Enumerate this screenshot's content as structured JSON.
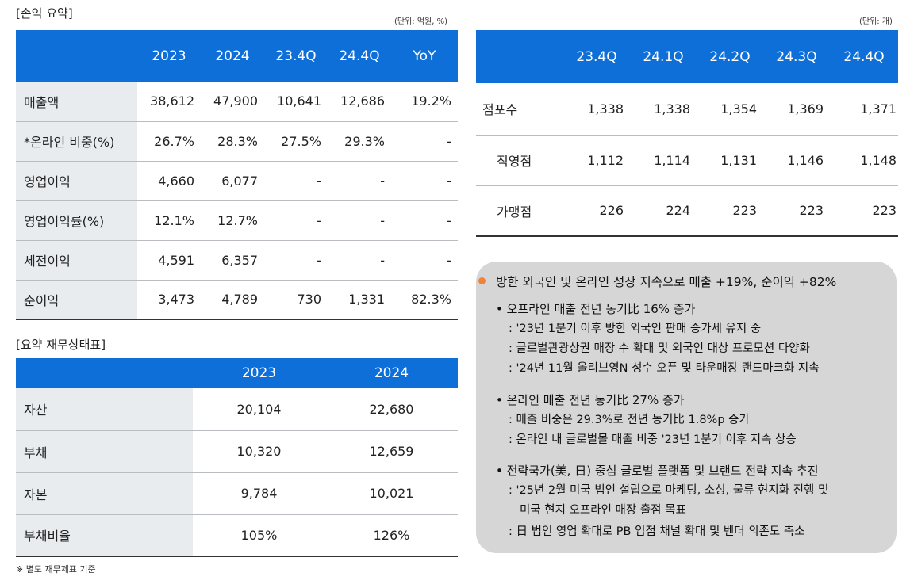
{
  "income": {
    "title": "[손익 요약]",
    "unit": "(단위: 억원, %)",
    "headers": [
      "2023",
      "2024",
      "23.4Q",
      "24.4Q",
      "YoY"
    ],
    "rows": [
      {
        "label": "매출액",
        "values": [
          "38,612",
          "47,900",
          "10,641",
          "12,686",
          "19.2%"
        ]
      },
      {
        "label": "*온라인 비중(%)",
        "values": [
          "26.7%",
          "28.3%",
          "27.5%",
          "29.3%",
          "-"
        ]
      },
      {
        "label": "영업이익",
        "values": [
          "4,660",
          "6,077",
          "-",
          "-",
          "-"
        ]
      },
      {
        "label": "영업이익률(%)",
        "values": [
          "12.1%",
          "12.7%",
          "-",
          "-",
          "-"
        ]
      },
      {
        "label": "세전이익",
        "values": [
          "4,591",
          "6,357",
          "-",
          "-",
          "-"
        ]
      },
      {
        "label": "순이익",
        "values": [
          "3,473",
          "4,789",
          "730",
          "1,331",
          "82.3%"
        ]
      }
    ]
  },
  "balance": {
    "title": "[요약 재무상태표]",
    "headers": [
      "2023",
      "2024"
    ],
    "rows": [
      {
        "label": "자산",
        "values": [
          "20,104",
          "22,680"
        ]
      },
      {
        "label": "부채",
        "values": [
          "10,320",
          "12,659"
        ]
      },
      {
        "label": "자본",
        "values": [
          "9,784",
          "10,021"
        ]
      },
      {
        "label": "부채비율",
        "values": [
          "105%",
          "126%"
        ]
      }
    ],
    "note": "※ 별도 재무제표 기준"
  },
  "stores": {
    "unit": "(단위: 개)",
    "headers": [
      "23.4Q",
      "24.1Q",
      "24.2Q",
      "24.3Q",
      "24.4Q"
    ],
    "rows": [
      {
        "label": "점포수",
        "values": [
          "1,338",
          "1,338",
          "1,354",
          "1,369",
          "1,371"
        ]
      },
      {
        "label": "직영점",
        "values": [
          "1,112",
          "1,114",
          "1,131",
          "1,146",
          "1,148"
        ]
      },
      {
        "label": "가맹점",
        "values": [
          "226",
          "224",
          "223",
          "223",
          "223"
        ]
      }
    ]
  },
  "summary": {
    "accent_color": "#f0833a",
    "headline": "방한 외국인 및 온라인 성장 지속으로 매출 +19%, 순이익 +82%",
    "groups": [
      {
        "bullet": "• 오프라인 매출 전년 동기比 16% 증가",
        "subs": [
          ": '23년 1분기 이후 방한 외국인 판매 증가세 유지 중",
          ": 글로벌관광상권 매장 수 확대 및 외국인 대상 프로모션 다양화",
          ": '24년 11월 올리브영N 성수 오픈 및 타운매장 랜드마크화 지속"
        ]
      },
      {
        "bullet": "• 온라인 매출 전년 동기比 27% 증가",
        "subs": [
          ": 매출 비중은 29.3%로 전년 동기比 1.8%p 증가",
          ": 온라인 내 글로벌몰 매출 비중 '23년 1분기 이후 지속 상승"
        ]
      },
      {
        "bullet": "• 전략국가(美, 日) 중심 글로벌 플랫폼 및 브랜드 전략 지속 추진",
        "subs": [
          ": '25년 2월 미국 법인 설립으로 마케팅, 소싱, 물류 현지화 진행 및",
          "미국 현지 오프라인 매장 출점 목표",
          ": 日 법인 영업 확대로 PB 입점 채널 확대 및 벤더 의존도 축소"
        ]
      }
    ]
  }
}
